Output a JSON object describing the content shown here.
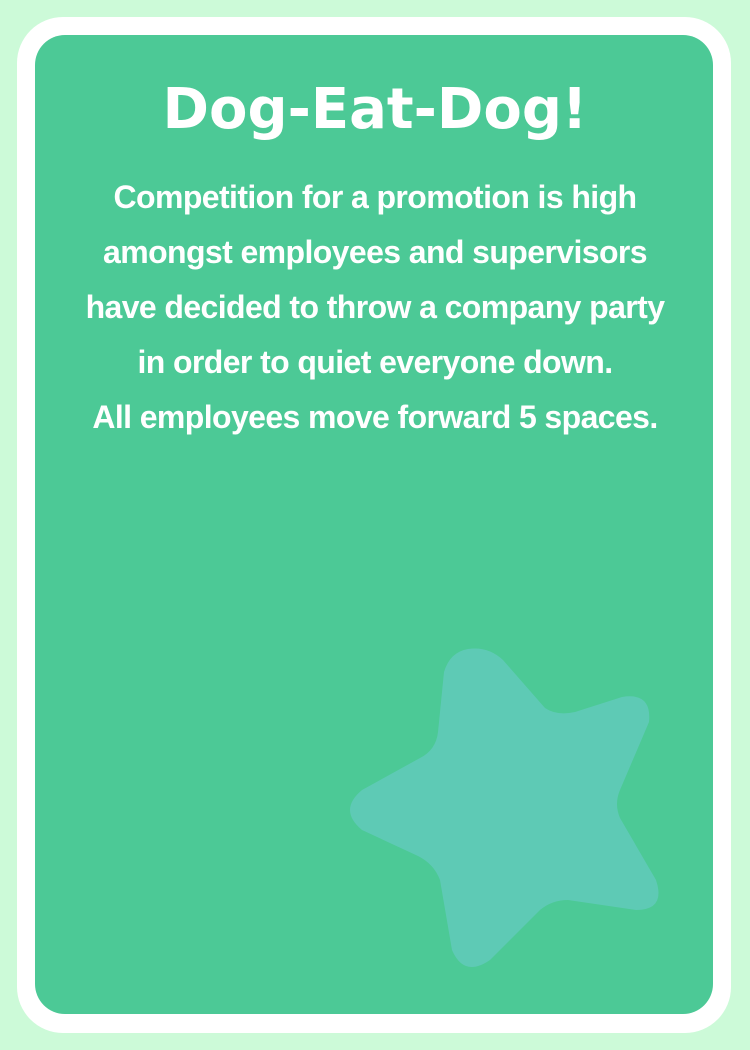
{
  "colors": {
    "page_background": "#ccfad8",
    "card_frame": "#ffffff",
    "card_panel": "#4cc996",
    "star": "#5ecab5",
    "text": "#ffffff"
  },
  "card": {
    "title": "Dog-Eat-Dog!",
    "body_lines": [
      "Competition for a promotion is high",
      "amongst employees and supervisors",
      "have decided to throw a company party",
      "in order to quiet everyone down.",
      "All employees move forward 5 spaces."
    ]
  },
  "decoration": {
    "star_icon": "star-icon"
  }
}
